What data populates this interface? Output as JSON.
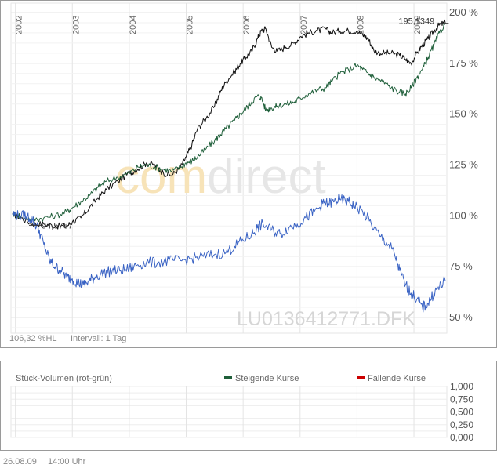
{
  "chart_data": [
    {
      "type": "line",
      "x_axis": {
        "ticks": [
          "2002",
          "2003",
          "2004",
          "2005",
          "2006",
          "2007",
          "2008",
          "2009"
        ]
      },
      "y_axis": {
        "ticks": [
          "200 %",
          "175 %",
          "150 %",
          "125 %",
          "100 %",
          "75 %",
          "50 %"
        ],
        "range": [
          40,
          205
        ],
        "side": "right"
      },
      "grid": true,
      "watermark": "comdirect",
      "security_id": "LU0136412771.DFK",
      "info_left": "106,32 %HL",
      "info_interval": "Intervall: 1 Tag",
      "annotations": [
        {
          "text": "94,5767",
          "x": 2002.35,
          "y": 94.6
        },
        {
          "text": "195,1349",
          "x": 2009.5,
          "y": 195.1
        }
      ],
      "series": [
        {
          "color": "#111111",
          "x": [
            2001.95,
            2002.1,
            2002.3,
            2002.5,
            2002.7,
            2002.9,
            2003.0,
            2003.15,
            2003.3,
            2003.45,
            2003.6,
            2003.8,
            2004.0,
            2004.15,
            2004.3,
            2004.45,
            2004.6,
            2004.75,
            2004.9,
            2005.0,
            2005.1,
            2005.2,
            2005.35,
            2005.5,
            2005.6,
            2005.7,
            2005.85,
            2005.95,
            2006.05,
            2006.15,
            2006.25,
            2006.32,
            2006.4,
            2006.5,
            2006.6,
            2006.75,
            2006.9,
            2007.0,
            2007.15,
            2007.3,
            2007.45,
            2007.55,
            2007.7,
            2007.85,
            2008.0,
            2008.1,
            2008.2,
            2008.3,
            2008.45,
            2008.6,
            2008.75,
            2008.85,
            2008.95,
            2009.05,
            2009.15,
            2009.25,
            2009.35,
            2009.45,
            2009.55
          ],
          "y": [
            101,
            99,
            96,
            96,
            95,
            95,
            97,
            99,
            104,
            109,
            113,
            117,
            121,
            123,
            126,
            125,
            121,
            120,
            124,
            129,
            135,
            143,
            148,
            154,
            161,
            166,
            171,
            175,
            178,
            181,
            187,
            191,
            192,
            183,
            181,
            183,
            185,
            188,
            190,
            191,
            192,
            190,
            191,
            191,
            191,
            189,
            187,
            181,
            180,
            180,
            179,
            177,
            175,
            180,
            184,
            187,
            191,
            194,
            195
          ]
        },
        {
          "color": "#1f5f3a",
          "x": [
            2001.95,
            2002.1,
            2002.3,
            2002.5,
            2002.7,
            2002.9,
            2003.0,
            2003.15,
            2003.3,
            2003.45,
            2003.6,
            2003.8,
            2004.0,
            2004.15,
            2004.3,
            2004.45,
            2004.6,
            2004.75,
            2004.9,
            2005.0,
            2005.1,
            2005.2,
            2005.35,
            2005.5,
            2005.6,
            2005.7,
            2005.85,
            2005.95,
            2006.05,
            2006.15,
            2006.25,
            2006.32,
            2006.4,
            2006.5,
            2006.6,
            2006.75,
            2006.9,
            2007.0,
            2007.15,
            2007.3,
            2007.45,
            2007.55,
            2007.7,
            2007.85,
            2008.0,
            2008.1,
            2008.2,
            2008.3,
            2008.45,
            2008.6,
            2008.75,
            2008.85,
            2008.95,
            2009.05,
            2009.15,
            2009.25,
            2009.35,
            2009.45,
            2009.55
          ],
          "y": [
            101,
            100,
            98,
            99,
            100,
            102,
            104,
            107,
            110,
            114,
            117,
            119,
            121,
            124,
            125,
            124,
            123,
            122,
            124,
            126,
            127,
            129,
            133,
            137,
            140,
            143,
            147,
            150,
            153,
            156,
            159,
            158,
            152,
            153,
            154,
            155,
            156,
            158,
            160,
            162,
            163,
            166,
            170,
            172,
            174,
            172,
            170,
            168,
            166,
            163,
            161,
            160,
            163,
            168,
            172,
            178,
            184,
            190,
            195
          ]
        },
        {
          "color": "#3a63c4",
          "x": [
            2001.95,
            2002.05,
            2002.2,
            2002.3,
            2002.4,
            2002.5,
            2002.6,
            2002.7,
            2002.8,
            2002.9,
            2003.0,
            2003.1,
            2003.2,
            2003.3,
            2003.4,
            2003.55,
            2003.7,
            2003.85,
            2004.0,
            2004.15,
            2004.3,
            2004.5,
            2004.7,
            2004.9,
            2005.1,
            2005.3,
            2005.5,
            2005.7,
            2005.85,
            2006.0,
            2006.15,
            2006.25,
            2006.35,
            2006.5,
            2006.65,
            2006.8,
            2006.95,
            2007.1,
            2007.25,
            2007.4,
            2007.5,
            2007.6,
            2007.7,
            2007.85,
            2007.95,
            2008.1,
            2008.25,
            2008.4,
            2008.55,
            2008.65,
            2008.75,
            2008.85,
            2008.95,
            2009.05,
            2009.15,
            2009.25,
            2009.35,
            2009.45,
            2009.55
          ],
          "y": [
            101,
            100,
            100,
            98,
            94,
            86,
            78,
            75,
            73,
            70,
            69,
            67,
            66,
            68,
            70,
            72,
            73,
            73,
            74,
            76,
            77,
            77,
            78,
            78,
            79,
            80,
            81,
            82,
            85,
            88,
            91,
            94,
            96,
            93,
            91,
            94,
            96,
            99,
            102,
            106,
            106,
            107,
            108,
            107,
            105,
            102,
            96,
            90,
            86,
            82,
            73,
            66,
            62,
            59,
            55,
            57,
            62,
            65,
            68
          ]
        }
      ]
    },
    {
      "type": "bar",
      "title": "Stück-Volumen (rot-grün)",
      "legend": [
        {
          "label": "Steigende Kurse",
          "color": "#1f5f3a"
        },
        {
          "label": "Fallende Kurse",
          "color": "#cc0000"
        }
      ],
      "y_axis": {
        "ticks": [
          "1,000",
          "0,750",
          "0,500",
          "0,250",
          "0,000"
        ],
        "range": [
          0,
          1
        ]
      },
      "values": []
    }
  ],
  "footer": {
    "date": "26.08.09",
    "time": "14:00 Uhr"
  }
}
